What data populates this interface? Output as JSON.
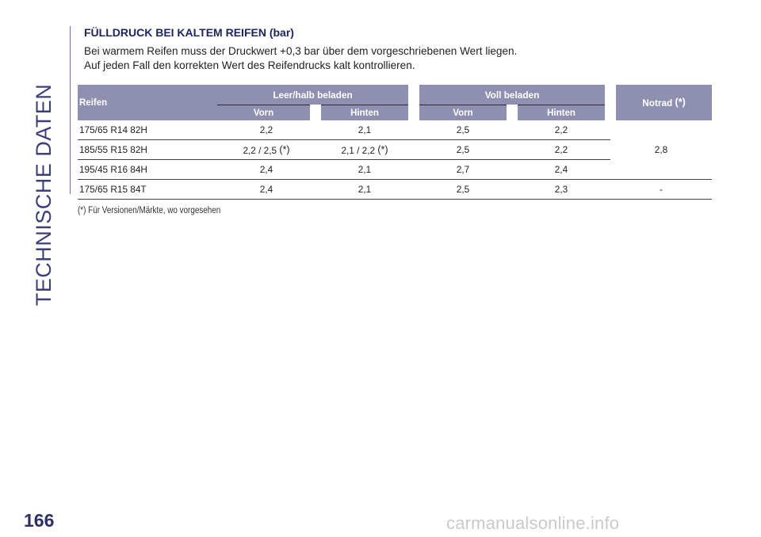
{
  "side_title": "TECHNISCHE DATEN",
  "page_number": "166",
  "section_title": "FÜLLDRUCK BEI KALTEM REIFEN (bar)",
  "intro_lines": [
    "Bei warmem Reifen muss der Druckwert +0,3 bar über dem vorgeschriebenen Wert liegen.",
    "Auf jeden Fall den korrekten Wert des Reifendrucks kalt kontrollieren."
  ],
  "table": {
    "col_reifen": "Reifen",
    "group_1": "Leer/halb beladen",
    "group_2": "Voll beladen",
    "col_notrad": "Notrad",
    "star": "(*)",
    "sub_vorn": "Vorn",
    "sub_hinten": "Hinten",
    "rows": [
      {
        "tyre": "175/65 R14 82H",
        "v1": "2,2",
        "h1": "2,1",
        "v2": "2,5",
        "h2": "2,2"
      },
      {
        "tyre": "185/55 R15 82H",
        "v1": "2,2 / 2,5",
        "h1": "2,1 / 2,2",
        "v2": "2,5",
        "h2": "2,2"
      },
      {
        "tyre": "195/45 R16 84H",
        "v1": "2,4",
        "h1": "2,1",
        "v2": "2,7",
        "h2": "2,4"
      },
      {
        "tyre": "175/65 R15 84T",
        "v1": "2,4",
        "h1": "2,1",
        "v2": "2,5",
        "h2": "2,3"
      }
    ],
    "notrad_shared": "2,8",
    "notrad_last": "-"
  },
  "footnote": "(*) Für Versionen/Märkte, wo vorgesehen",
  "watermark": "carmanualsonline.info"
}
